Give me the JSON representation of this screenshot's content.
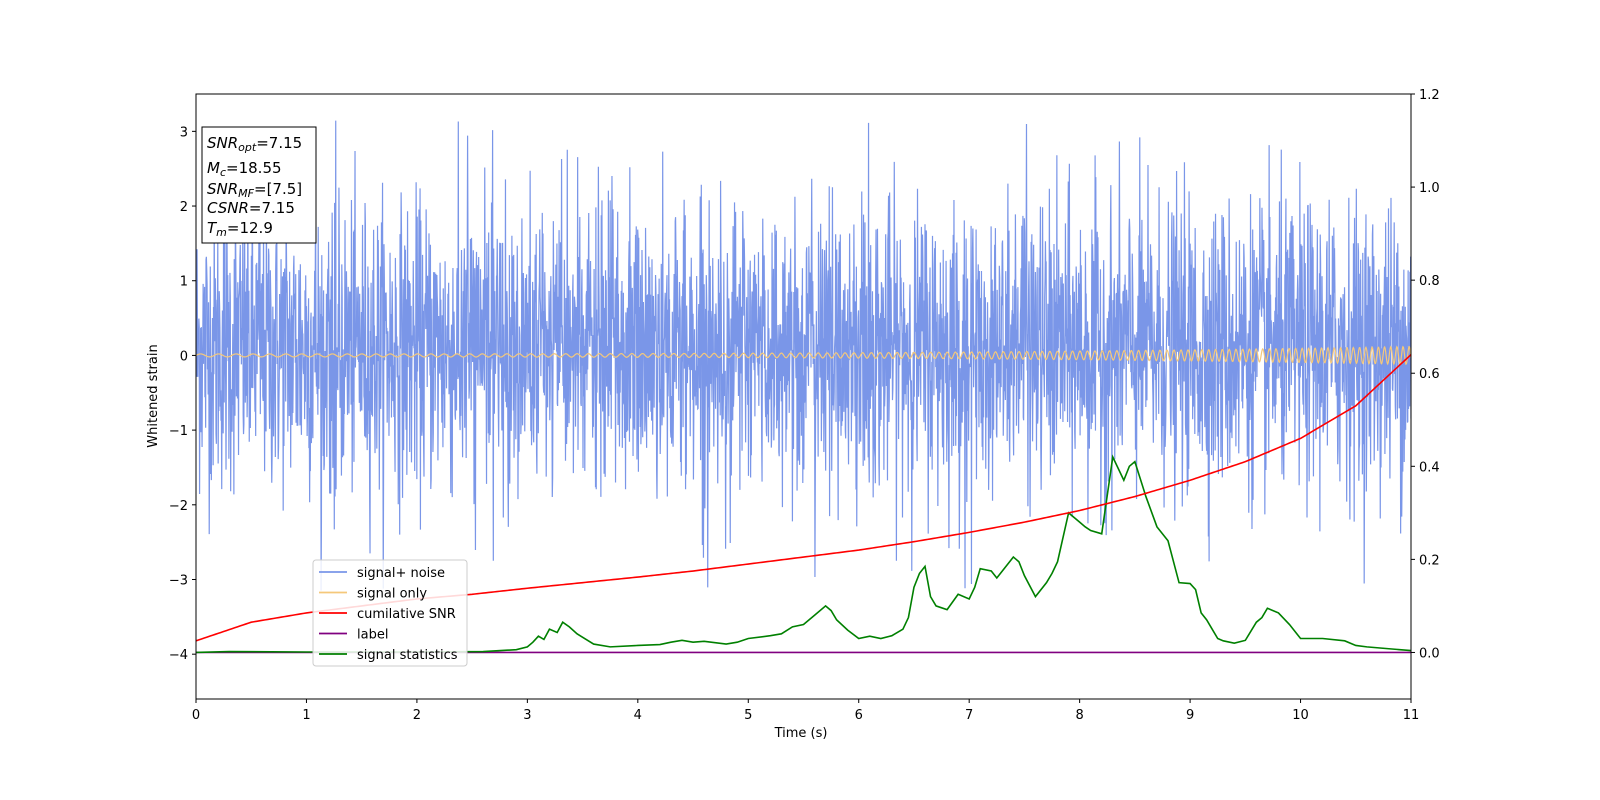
{
  "chart_data": {
    "type": "line",
    "xlabel": "Time (s)",
    "ylabel": "Whitened strain",
    "xlim": [
      0,
      11
    ],
    "ylim_left": [
      -4.6,
      3.5
    ],
    "ylim_right": [
      -0.1,
      1.2
    ],
    "x_ticks": [
      "0",
      "1",
      "2",
      "3",
      "4",
      "5",
      "6",
      "7",
      "8",
      "9",
      "10",
      "11"
    ],
    "y_ticks_left": [
      "−4",
      "−3",
      "−2",
      "−1",
      "0",
      "1",
      "2",
      "3"
    ],
    "y_ticks_right": [
      "0.0",
      "0.2",
      "0.4",
      "0.6",
      "0.8",
      "1.0",
      "1.2"
    ],
    "legend_position": "lower-left",
    "grid": false,
    "colors": {
      "signal_noise": "#7a96e8",
      "signal_only": "#f5c87a",
      "cumulative_snr": "#ff0000",
      "label": "#800080",
      "signal_statistics": "#008000"
    },
    "series": [
      {
        "name": "signal+ noise",
        "axis": "left",
        "description_range": [
          -3.2,
          3.15
        ]
      },
      {
        "name": "signal only",
        "axis": "left",
        "amplitude_start": 0.02,
        "amplitude_end": 0.12
      },
      {
        "name": "cumilative SNR",
        "axis": "right",
        "x": [
          0,
          0.5,
          1,
          1.5,
          2,
          2.5,
          3,
          3.5,
          4,
          4.5,
          5,
          5.5,
          6,
          6.5,
          7,
          7.5,
          8,
          8.5,
          9,
          9.5,
          10,
          10.5,
          11
        ],
        "values": [
          0.025,
          0.065,
          0.085,
          0.1,
          0.115,
          0.125,
          0.138,
          0.15,
          0.162,
          0.175,
          0.19,
          0.205,
          0.22,
          0.238,
          0.258,
          0.28,
          0.305,
          0.335,
          0.37,
          0.41,
          0.46,
          0.53,
          0.64
        ]
      },
      {
        "name": "label",
        "axis": "right",
        "x": [
          0,
          11
        ],
        "values": [
          0.0,
          0.0
        ]
      },
      {
        "name": "signal statistics",
        "axis": "right",
        "x": [
          0,
          0.3,
          1,
          2,
          2.6,
          2.9,
          3.0,
          3.05,
          3.1,
          3.15,
          3.2,
          3.27,
          3.32,
          3.38,
          3.45,
          3.6,
          3.75,
          4.0,
          4.2,
          4.3,
          4.4,
          4.5,
          4.6,
          4.8,
          4.9,
          5.0,
          5.2,
          5.3,
          5.4,
          5.5,
          5.6,
          5.7,
          5.75,
          5.8,
          5.9,
          6.0,
          6.1,
          6.2,
          6.3,
          6.4,
          6.45,
          6.5,
          6.55,
          6.6,
          6.65,
          6.7,
          6.8,
          6.9,
          7.0,
          7.05,
          7.1,
          7.2,
          7.25,
          7.3,
          7.4,
          7.45,
          7.5,
          7.6,
          7.7,
          7.75,
          7.8,
          7.9,
          8.0,
          8.05,
          8.1,
          8.2,
          8.3,
          8.4,
          8.45,
          8.5,
          8.6,
          8.7,
          8.8,
          8.9,
          9.0,
          9.05,
          9.1,
          9.15,
          9.2,
          9.25,
          9.3,
          9.4,
          9.5,
          9.6,
          9.65,
          9.7,
          9.8,
          9.9,
          10.0,
          10.2,
          10.4,
          10.5,
          10.6,
          10.8,
          10.9,
          11.0
        ],
        "values": [
          0.0,
          0.002,
          0.001,
          0.001,
          0.002,
          0.006,
          0.012,
          0.022,
          0.035,
          0.028,
          0.05,
          0.043,
          0.065,
          0.055,
          0.04,
          0.018,
          0.012,
          0.015,
          0.017,
          0.022,
          0.026,
          0.022,
          0.024,
          0.018,
          0.022,
          0.03,
          0.036,
          0.04,
          0.055,
          0.06,
          0.08,
          0.1,
          0.09,
          0.07,
          0.048,
          0.03,
          0.035,
          0.03,
          0.036,
          0.05,
          0.075,
          0.14,
          0.17,
          0.185,
          0.12,
          0.1,
          0.092,
          0.125,
          0.115,
          0.14,
          0.18,
          0.175,
          0.16,
          0.175,
          0.205,
          0.195,
          0.165,
          0.12,
          0.15,
          0.17,
          0.195,
          0.3,
          0.28,
          0.27,
          0.262,
          0.255,
          0.42,
          0.37,
          0.4,
          0.41,
          0.335,
          0.27,
          0.24,
          0.15,
          0.148,
          0.135,
          0.085,
          0.07,
          0.05,
          0.03,
          0.025,
          0.02,
          0.026,
          0.065,
          0.075,
          0.095,
          0.085,
          0.06,
          0.03,
          0.03,
          0.025,
          0.015,
          0.012,
          0.008,
          0.006,
          0.004
        ]
      }
    ],
    "annotation_box": {
      "lines": [
        {
          "sym": "SNR",
          "sub": "opt",
          "val": "=7.15"
        },
        {
          "sym": "M",
          "sub": "c",
          "val": "=18.55"
        },
        {
          "sym": "SNR",
          "sub": "MF",
          "val": "=[7.5]"
        },
        {
          "sym": "CSNR",
          "sub": "",
          "val": "=7.15"
        },
        {
          "sym": "T",
          "sub": "m",
          "val": "=12.9"
        }
      ]
    }
  }
}
